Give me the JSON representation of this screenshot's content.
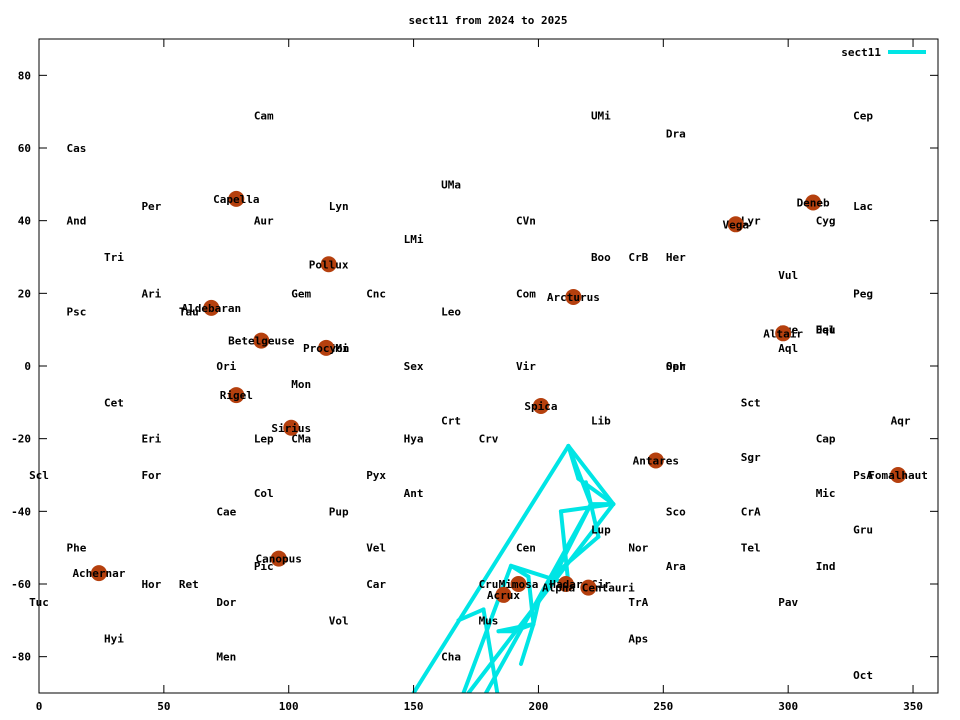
{
  "chart_data": {
    "type": "scatter",
    "title": "sect11 from 2024 to 2025",
    "xlabel": "",
    "ylabel": "",
    "xlim": [
      0,
      360
    ],
    "ylim": [
      -90,
      90
    ],
    "x_ticks": [
      0,
      50,
      100,
      150,
      200,
      250,
      300,
      350
    ],
    "y_ticks": [
      -80,
      -60,
      -40,
      -20,
      0,
      20,
      40,
      60,
      80
    ],
    "grid": false,
    "legend_position": "top-right",
    "colors": {
      "star": "#b5400e",
      "series": "#00e5e5",
      "axis": "#000000"
    },
    "series": [
      {
        "name": "sect11",
        "segments": [
          [
            [
              212,
              -22
            ],
            [
              230,
              -38
            ]
          ],
          [
            [
              212,
              -22
            ],
            [
              150,
              -90
            ]
          ],
          [
            [
              230,
              -38
            ],
            [
              172,
              -90
            ]
          ],
          [
            [
              212,
              -22
            ],
            [
              221,
              -38
            ]
          ],
          [
            [
              221,
              -38
            ],
            [
              179,
              -90
            ]
          ],
          [
            [
              230,
              -38
            ],
            [
              209,
              -40
            ]
          ],
          [
            [
              221,
              -38
            ],
            [
              207,
              -57
            ]
          ],
          [
            [
              209,
              -40
            ],
            [
              212,
              -60
            ]
          ],
          [
            [
              207,
              -57
            ],
            [
              200,
              -65
            ]
          ],
          [
            [
              189,
              -55
            ],
            [
              212,
              -60
            ]
          ],
          [
            [
              198,
              -71
            ],
            [
              193,
              -82
            ]
          ],
          [
            [
              190,
              -73
            ],
            [
              198,
              -71
            ]
          ],
          [
            [
              168,
              -70
            ],
            [
              178,
              -67
            ]
          ],
          [
            [
              178,
              -67
            ],
            [
              184,
              -92
            ]
          ],
          [
            [
              170,
              -90
            ],
            [
              189,
              -55
            ]
          ],
          [
            [
              189,
              -55
            ],
            [
              196,
              -58
            ]
          ],
          [
            [
              196,
              -58
            ],
            [
              198,
              -71
            ]
          ],
          [
            [
              198,
              -71
            ],
            [
              200,
              -65
            ]
          ],
          [
            [
              221,
              -38
            ],
            [
              230,
              -38
            ]
          ],
          [
            [
              216,
              -31
            ],
            [
              230,
              -38
            ]
          ],
          [
            [
              219,
              -32
            ],
            [
              224,
              -47
            ]
          ],
          [
            [
              216,
              -31
            ],
            [
              212,
              -22
            ]
          ],
          [
            [
              224,
              -47
            ],
            [
              207,
              -57
            ]
          ],
          [
            [
              184,
              -73
            ],
            [
              198,
              -71
            ]
          ],
          [
            [
              184,
              -73
            ],
            [
              190,
              -73
            ]
          ]
        ]
      }
    ],
    "constellations": [
      {
        "name": "Cam",
        "x": 90,
        "y": 69
      },
      {
        "name": "UMi",
        "x": 225,
        "y": 69
      },
      {
        "name": "Cep",
        "x": 330,
        "y": 69
      },
      {
        "name": "Dra",
        "x": 255,
        "y": 64
      },
      {
        "name": "Cas",
        "x": 15,
        "y": 60
      },
      {
        "name": "UMa",
        "x": 165,
        "y": 50
      },
      {
        "name": "Per",
        "x": 45,
        "y": 44
      },
      {
        "name": "Lyn",
        "x": 120,
        "y": 44
      },
      {
        "name": "Lac",
        "x": 330,
        "y": 44
      },
      {
        "name": "And",
        "x": 15,
        "y": 40
      },
      {
        "name": "Aur",
        "x": 90,
        "y": 40
      },
      {
        "name": "CVn",
        "x": 195,
        "y": 40
      },
      {
        "name": "Cyg",
        "x": 315,
        "y": 40
      },
      {
        "name": "Lyr",
        "x": 285,
        "y": 40
      },
      {
        "name": "LMi",
        "x": 150,
        "y": 35
      },
      {
        "name": "Tri",
        "x": 30,
        "y": 30
      },
      {
        "name": "Boo",
        "x": 225,
        "y": 30
      },
      {
        "name": "CrB",
        "x": 240,
        "y": 30
      },
      {
        "name": "Her",
        "x": 255,
        "y": 30
      },
      {
        "name": "Vul",
        "x": 300,
        "y": 25
      },
      {
        "name": "Ari",
        "x": 45,
        "y": 20
      },
      {
        "name": "Gem",
        "x": 105,
        "y": 20
      },
      {
        "name": "Cnc",
        "x": 135,
        "y": 20
      },
      {
        "name": "Com",
        "x": 195,
        "y": 20
      },
      {
        "name": "Peg",
        "x": 330,
        "y": 20
      },
      {
        "name": "Psc",
        "x": 15,
        "y": 15
      },
      {
        "name": "Tau",
        "x": 60,
        "y": 15
      },
      {
        "name": "Leo",
        "x": 165,
        "y": 15
      },
      {
        "name": "Sge",
        "x": 300,
        "y": 10
      },
      {
        "name": "Equ",
        "x": 315,
        "y": 10
      },
      {
        "name": "Del",
        "x": 315,
        "y": 10
      },
      {
        "name": "CMi",
        "x": 120,
        "y": 5
      },
      {
        "name": "Aql",
        "x": 300,
        "y": 5
      },
      {
        "name": "Ori",
        "x": 75,
        "y": 0
      },
      {
        "name": "Sex",
        "x": 150,
        "y": 0
      },
      {
        "name": "Vir",
        "x": 195,
        "y": 0
      },
      {
        "name": "Oph",
        "x": 255,
        "y": 0
      },
      {
        "name": "Ser",
        "x": 255,
        "y": 0
      },
      {
        "name": "Mon",
        "x": 105,
        "y": -5
      },
      {
        "name": "Cet",
        "x": 30,
        "y": -10
      },
      {
        "name": "Sct",
        "x": 285,
        "y": -10
      },
      {
        "name": "Crt",
        "x": 165,
        "y": -15
      },
      {
        "name": "Lib",
        "x": 225,
        "y": -15
      },
      {
        "name": "Aqr",
        "x": 345,
        "y": -15
      },
      {
        "name": "Eri",
        "x": 45,
        "y": -20
      },
      {
        "name": "Lep",
        "x": 90,
        "y": -20
      },
      {
        "name": "CMa",
        "x": 105,
        "y": -20
      },
      {
        "name": "Hya",
        "x": 150,
        "y": -20
      },
      {
        "name": "Crv",
        "x": 180,
        "y": -20
      },
      {
        "name": "Cap",
        "x": 315,
        "y": -20
      },
      {
        "name": "Sgr",
        "x": 285,
        "y": -25
      },
      {
        "name": "Scl",
        "x": 0,
        "y": -30
      },
      {
        "name": "For",
        "x": 45,
        "y": -30
      },
      {
        "name": "Pyx",
        "x": 135,
        "y": -30
      },
      {
        "name": "PsA",
        "x": 330,
        "y": -30
      },
      {
        "name": "Col",
        "x": 90,
        "y": -35
      },
      {
        "name": "Ant",
        "x": 150,
        "y": -35
      },
      {
        "name": "Mic",
        "x": 315,
        "y": -35
      },
      {
        "name": "Cae",
        "x": 75,
        "y": -40
      },
      {
        "name": "Pup",
        "x": 120,
        "y": -40
      },
      {
        "name": "Sco",
        "x": 255,
        "y": -40
      },
      {
        "name": "CrA",
        "x": 285,
        "y": -40
      },
      {
        "name": "Lup",
        "x": 225,
        "y": -45
      },
      {
        "name": "Gru",
        "x": 330,
        "y": -45
      },
      {
        "name": "Phe",
        "x": 15,
        "y": -50
      },
      {
        "name": "Vel",
        "x": 135,
        "y": -50
      },
      {
        "name": "Cen",
        "x": 195,
        "y": -50
      },
      {
        "name": "Nor",
        "x": 240,
        "y": -50
      },
      {
        "name": "Tel",
        "x": 285,
        "y": -50
      },
      {
        "name": "Pic",
        "x": 90,
        "y": -55
      },
      {
        "name": "Ara",
        "x": 255,
        "y": -55
      },
      {
        "name": "Ind",
        "x": 315,
        "y": -55
      },
      {
        "name": "Hor",
        "x": 45,
        "y": -60
      },
      {
        "name": "Ret",
        "x": 60,
        "y": -60
      },
      {
        "name": "Car",
        "x": 135,
        "y": -60
      },
      {
        "name": "Cru",
        "x": 180,
        "y": -60
      },
      {
        "name": "Cir",
        "x": 225,
        "y": -60
      },
      {
        "name": "Tuc",
        "x": 0,
        "y": -65
      },
      {
        "name": "Dor",
        "x": 75,
        "y": -65
      },
      {
        "name": "TrA",
        "x": 240,
        "y": -65
      },
      {
        "name": "Pav",
        "x": 300,
        "y": -65
      },
      {
        "name": "Vol",
        "x": 120,
        "y": -70
      },
      {
        "name": "Mus",
        "x": 180,
        "y": -70
      },
      {
        "name": "Hyi",
        "x": 30,
        "y": -75
      },
      {
        "name": "Aps",
        "x": 240,
        "y": -75
      },
      {
        "name": "Men",
        "x": 75,
        "y": -80
      },
      {
        "name": "Cha",
        "x": 165,
        "y": -80
      },
      {
        "name": "Oct",
        "x": 330,
        "y": -85
      }
    ],
    "stars": [
      {
        "name": "Capella",
        "x": 79,
        "y": 46
      },
      {
        "name": "Deneb",
        "x": 310,
        "y": 45
      },
      {
        "name": "Vega",
        "x": 279,
        "y": 39
      },
      {
        "name": "Pollux",
        "x": 116,
        "y": 28
      },
      {
        "name": "Arcturus",
        "x": 214,
        "y": 19
      },
      {
        "name": "Aldebaran",
        "x": 69,
        "y": 16
      },
      {
        "name": "Altair",
        "x": 298,
        "y": 9
      },
      {
        "name": "Betelgeuse",
        "x": 89,
        "y": 7
      },
      {
        "name": "Procyon",
        "x": 115,
        "y": 5
      },
      {
        "name": "Rigel",
        "x": 79,
        "y": -8
      },
      {
        "name": "Spica",
        "x": 201,
        "y": -11
      },
      {
        "name": "Sirius",
        "x": 101,
        "y": -17
      },
      {
        "name": "Antares",
        "x": 247,
        "y": -26
      },
      {
        "name": "Fomalhaut",
        "x": 344,
        "y": -30
      },
      {
        "name": "Canopus",
        "x": 96,
        "y": -53
      },
      {
        "name": "Achernar",
        "x": 24,
        "y": -57
      },
      {
        "name": "Mimosa",
        "x": 192,
        "y": -60
      },
      {
        "name": "Hadar",
        "x": 211,
        "y": -60
      },
      {
        "name": "Alpha Centauri",
        "x": 220,
        "y": -61
      },
      {
        "name": "Acrux",
        "x": 186,
        "y": -63
      }
    ]
  }
}
